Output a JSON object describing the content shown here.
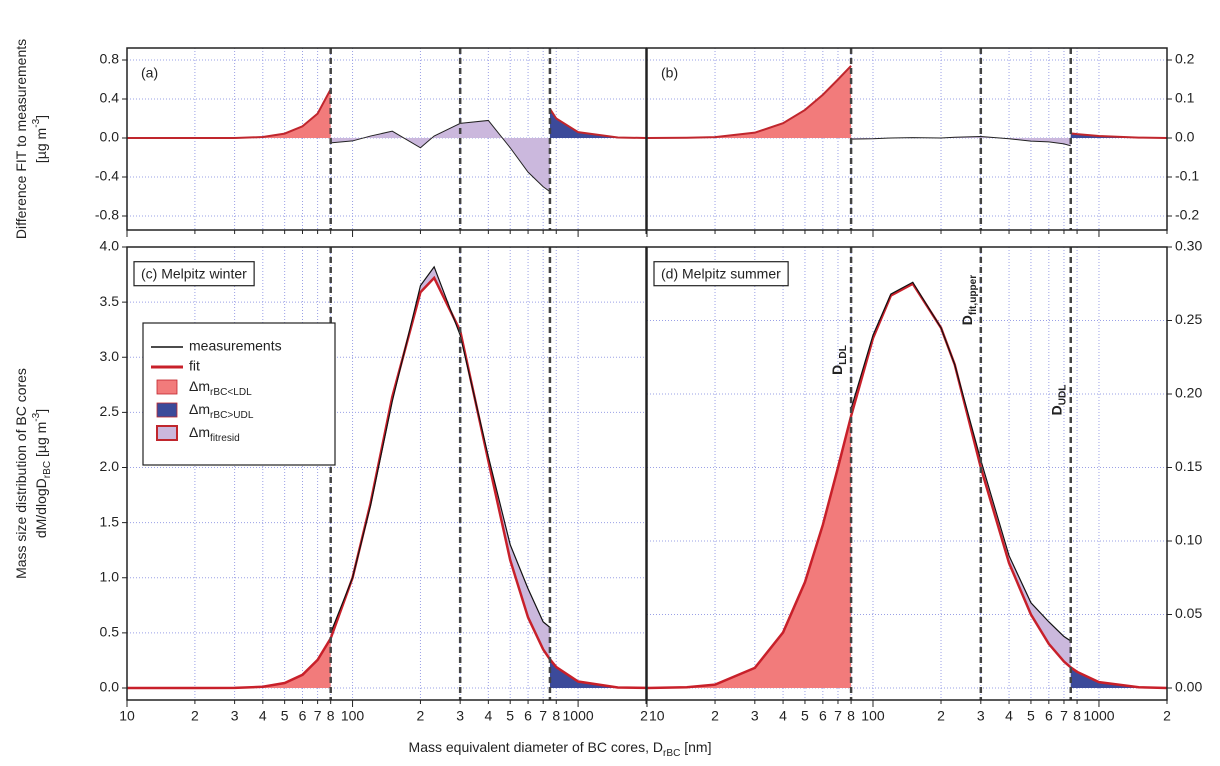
{
  "shared": {
    "x_label": [
      {
        "text": "Mass equivalent diameter of BC cores, D"
      },
      {
        "text": "rBC",
        "sub": true
      },
      {
        "text": " [nm]"
      }
    ]
  },
  "chart_data": [
    {
      "type": "area",
      "label": "(a)",
      "y_axis": "left",
      "log_x": true,
      "grid": true,
      "y_label": [
        [
          {
            "text": "Difference FIT to measurements"
          }
        ],
        [
          {
            "text": "[µg m"
          },
          {
            "text": "-3",
            "sup": true
          },
          {
            "text": "]"
          }
        ]
      ],
      "xlim": [
        10,
        2000
      ],
      "xticks": [
        10,
        {
          "value": 20,
          "label": "2"
        },
        {
          "value": 30,
          "label": "3"
        },
        {
          "value": 40,
          "label": "4"
        },
        {
          "value": 50,
          "label": "5"
        },
        {
          "value": 60,
          "label": "6"
        },
        {
          "value": 70,
          "label": "7"
        },
        {
          "value": 80,
          "label": "8"
        },
        100,
        {
          "value": 200,
          "label": "2"
        },
        {
          "value": 300,
          "label": "3"
        },
        {
          "value": 400,
          "label": "4"
        },
        {
          "value": 500,
          "label": "5"
        },
        {
          "value": 600,
          "label": "6"
        },
        {
          "value": 700,
          "label": "7"
        },
        {
          "value": 800,
          "label": "8"
        },
        1000,
        {
          "value": 2000,
          "label": "2"
        }
      ],
      "ylim": [
        -0.8,
        0.8
      ],
      "yticks": [
        -0.8,
        -0.4,
        {
          "value": 0,
          "label": "0.0"
        },
        0.4,
        0.8
      ],
      "vlines": [
        80,
        300,
        750
      ],
      "x": [
        10,
        15,
        20,
        30,
        40,
        50,
        60,
        70,
        80,
        100,
        120,
        150,
        200,
        230,
        300,
        400,
        500,
        600,
        700,
        750,
        800,
        1000,
        1500,
        2000
      ],
      "series": [
        {
          "color": "#f27b7b",
          "edge": "#c0262d",
          "values": [
            0,
            0,
            0,
            0,
            0.01,
            0.045,
            0.12,
            0.25,
            0.5,
            null,
            null,
            null,
            null,
            null,
            null,
            null,
            null,
            null,
            null,
            null,
            null,
            null,
            null,
            null
          ]
        },
        {
          "color": "#cbb8dd",
          "edge": "#222222",
          "values": [
            null,
            null,
            null,
            null,
            null,
            null,
            null,
            null,
            -0.05,
            -0.03,
            0.02,
            0.07,
            -0.1,
            0.02,
            0.15,
            0.18,
            -0.1,
            -0.35,
            -0.5,
            -0.55,
            null,
            null,
            null,
            null
          ]
        },
        {
          "color": "#3c4a9a",
          "edge": "#c0262d",
          "values": [
            null,
            null,
            null,
            null,
            null,
            null,
            null,
            null,
            null,
            null,
            null,
            null,
            null,
            null,
            null,
            null,
            null,
            null,
            null,
            0.3,
            0.2,
            0.06,
            0.005,
            0
          ]
        }
      ]
    },
    {
      "type": "area",
      "label": "(b)",
      "y_axis": "right",
      "log_x": true,
      "grid": true,
      "xlim": [
        10,
        2000
      ],
      "xticks": [
        10,
        {
          "value": 20,
          "label": "2"
        },
        {
          "value": 30,
          "label": "3"
        },
        {
          "value": 40,
          "label": "4"
        },
        {
          "value": 50,
          "label": "5"
        },
        {
          "value": 60,
          "label": "6"
        },
        {
          "value": 70,
          "label": "7"
        },
        {
          "value": 80,
          "label": "8"
        },
        100,
        {
          "value": 200,
          "label": "2"
        },
        {
          "value": 300,
          "label": "3"
        },
        {
          "value": 400,
          "label": "4"
        },
        {
          "value": 500,
          "label": "5"
        },
        {
          "value": 600,
          "label": "6"
        },
        {
          "value": 700,
          "label": "7"
        },
        {
          "value": 800,
          "label": "8"
        },
        1000,
        {
          "value": 2000,
          "label": "2"
        }
      ],
      "ylim": [
        -0.2,
        0.2
      ],
      "yticks": [
        -0.2,
        -0.1,
        {
          "value": 0,
          "label": "0.0"
        },
        0.1,
        0.2
      ],
      "vlines": [
        80,
        300,
        750
      ],
      "x": [
        10,
        15,
        20,
        30,
        40,
        50,
        60,
        70,
        80,
        100,
        120,
        150,
        200,
        230,
        300,
        400,
        500,
        600,
        700,
        750,
        800,
        1000,
        1500,
        2000
      ],
      "series": [
        {
          "color": "#f27b7b",
          "edge": "#c0262d",
          "values": [
            0,
            0.0005,
            0.0023,
            0.0137,
            0.0378,
            0.072,
            0.111,
            0.15,
            0.185,
            null,
            null,
            null,
            null,
            null,
            null,
            null,
            null,
            null,
            null,
            null,
            null,
            null,
            null,
            null
          ]
        },
        {
          "color": "#cbb8dd",
          "edge": "#222222",
          "values": [
            null,
            null,
            null,
            null,
            null,
            null,
            null,
            null,
            -0.003,
            -0.002,
            0,
            0.001,
            0,
            0.002,
            0.004,
            -0.002,
            -0.008,
            -0.01,
            -0.015,
            -0.02,
            null,
            null,
            null,
            null
          ]
        },
        {
          "color": "#3c4a9a",
          "edge": "#c0262d",
          "values": [
            null,
            null,
            null,
            null,
            null,
            null,
            null,
            null,
            null,
            null,
            null,
            null,
            null,
            null,
            null,
            null,
            null,
            null,
            null,
            0.012,
            0.01,
            0.005,
            0.001,
            0
          ]
        }
      ]
    },
    {
      "type": "line",
      "label": "(c) Melpitz winter",
      "y_axis": "left",
      "log_x": true,
      "grid": true,
      "y_label": [
        [
          {
            "text": "Mass size distribution of BC cores"
          }
        ],
        [
          {
            "text": "dM/dlogD"
          },
          {
            "text": "rBC",
            "sub": true
          },
          {
            "text": " [µg m"
          },
          {
            "text": "-3",
            "sup": true
          },
          {
            "text": "]"
          }
        ]
      ],
      "xlim": [
        10,
        2000
      ],
      "xticks": [
        10,
        {
          "value": 20,
          "label": "2"
        },
        {
          "value": 30,
          "label": "3"
        },
        {
          "value": 40,
          "label": "4"
        },
        {
          "value": 50,
          "label": "5"
        },
        {
          "value": 60,
          "label": "6"
        },
        {
          "value": 70,
          "label": "7"
        },
        {
          "value": 80,
          "label": "8"
        },
        100,
        {
          "value": 200,
          "label": "2"
        },
        {
          "value": 300,
          "label": "3"
        },
        {
          "value": 400,
          "label": "4"
        },
        {
          "value": 500,
          "label": "5"
        },
        {
          "value": 600,
          "label": "6"
        },
        {
          "value": 700,
          "label": "7"
        },
        {
          "value": 800,
          "label": "8"
        },
        1000,
        {
          "value": 2000,
          "label": "2"
        }
      ],
      "ylim": [
        0,
        4
      ],
      "yticks": [
        {
          "value": 0,
          "label": "0.0"
        },
        0.5,
        {
          "value": 1,
          "label": "1.0"
        },
        1.5,
        {
          "value": 2,
          "label": "2.0"
        },
        2.5,
        {
          "value": 3,
          "label": "3.0"
        },
        3.5,
        {
          "value": 4,
          "label": "4.0"
        }
      ],
      "vlines": [
        80,
        300,
        750
      ],
      "x": [
        10,
        15,
        20,
        30,
        40,
        50,
        60,
        70,
        80,
        100,
        120,
        150,
        200,
        230,
        300,
        400,
        500,
        600,
        700,
        750,
        800,
        1000,
        1500,
        2000
      ],
      "series": [
        {
          "name": "measurements",
          "color": "#111111",
          "values": [
            null,
            null,
            null,
            null,
            null,
            null,
            null,
            null,
            0.5,
            1.0,
            1.65,
            2.6,
            3.65,
            3.82,
            3.2,
            2.1,
            1.3,
            0.9,
            0.6,
            0.55,
            null,
            null,
            null,
            null
          ]
        },
        {
          "name": "fit",
          "color": "#c8202a",
          "values": [
            0,
            0,
            0,
            0.001,
            0.011,
            0.045,
            0.12,
            0.255,
            0.45,
            1.0,
            1.67,
            2.64,
            3.59,
            3.72,
            3.24,
            2.06,
            1.16,
            0.64,
            0.35,
            0.26,
            0.19,
            0.059,
            0.005,
            0.001
          ]
        }
      ],
      "areas": [
        {
          "name": [
            {
              "text": "Δm"
            },
            {
              "text": "rBC<LDL",
              "sub": true
            }
          ],
          "color": "#f27b7b"
        },
        {
          "name": [
            {
              "text": "Δm"
            },
            {
              "text": "rBC>UDL",
              "sub": true
            }
          ],
          "color": "#3c4a9a"
        },
        {
          "name": [
            {
              "text": "Δm"
            },
            {
              "text": "fitresid",
              "sub": true
            }
          ],
          "color": "#cbb8dd"
        }
      ]
    },
    {
      "type": "line",
      "label": "(d) Melpitz summer",
      "y_axis": "right",
      "log_x": true,
      "grid": true,
      "xlim": [
        10,
        2000
      ],
      "xticks": [
        10,
        {
          "value": 20,
          "label": "2"
        },
        {
          "value": 30,
          "label": "3"
        },
        {
          "value": 40,
          "label": "4"
        },
        {
          "value": 50,
          "label": "5"
        },
        {
          "value": 60,
          "label": "6"
        },
        {
          "value": 70,
          "label": "7"
        },
        {
          "value": 80,
          "label": "8"
        },
        100,
        {
          "value": 200,
          "label": "2"
        },
        {
          "value": 300,
          "label": "3"
        },
        {
          "value": 400,
          "label": "4"
        },
        {
          "value": 500,
          "label": "5"
        },
        {
          "value": 600,
          "label": "6"
        },
        {
          "value": 700,
          "label": "7"
        },
        {
          "value": 800,
          "label": "8"
        },
        1000,
        {
          "value": 2000,
          "label": "2"
        }
      ],
      "ylim": [
        0,
        0.3
      ],
      "yticks": [
        {
          "value": 0,
          "label": "0.00"
        },
        0.05,
        {
          "value": 0.1,
          "label": "0.10"
        },
        0.15,
        {
          "value": 0.2,
          "label": "0.20"
        },
        0.25,
        {
          "value": 0.3,
          "label": "0.30"
        }
      ],
      "vlines": [
        80,
        300,
        750
      ],
      "vline_labels": [
        [
          {
            "text": "D"
          },
          {
            "text": "LDL",
            "sub": true
          }
        ],
        [
          {
            "text": "D"
          },
          {
            "text": "fit,upper",
            "sub": true
          }
        ],
        [
          {
            "text": "D"
          },
          {
            "text": "UDL",
            "sub": true
          }
        ]
      ],
      "x": [
        10,
        15,
        20,
        30,
        40,
        50,
        60,
        70,
        80,
        100,
        120,
        150,
        200,
        230,
        300,
        400,
        500,
        600,
        700,
        750,
        800,
        1000,
        1500,
        2000
      ],
      "series": [
        {
          "color": "#111111",
          "values": [
            null,
            null,
            null,
            null,
            null,
            null,
            null,
            null,
            0.19,
            0.24,
            0.268,
            0.276,
            0.245,
            0.22,
            0.155,
            0.09,
            0.058,
            0.045,
            0.035,
            0.032,
            null,
            null,
            null,
            null
          ]
        },
        {
          "color": "#c8202a",
          "values": [
            0,
            0.0005,
            0.0023,
            0.0137,
            0.0378,
            0.072,
            0.111,
            0.15,
            0.185,
            0.238,
            0.267,
            0.275,
            0.245,
            0.22,
            0.15,
            0.085,
            0.05,
            0.03,
            0.018,
            0.014,
            0.011,
            0.004,
            0.0005,
            0
          ]
        }
      ],
      "areas": [
        {
          "color": "#f27b7b"
        },
        {
          "color": "#3c4a9a"
        },
        {
          "color": "#cbb8dd"
        }
      ]
    }
  ]
}
